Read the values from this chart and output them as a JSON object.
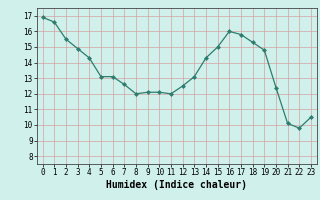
{
  "title": "",
  "xlabel": "Humidex (Indice chaleur)",
  "ylabel": "",
  "x": [
    0,
    1,
    2,
    3,
    4,
    5,
    6,
    7,
    8,
    9,
    10,
    11,
    12,
    13,
    14,
    15,
    16,
    17,
    18,
    19,
    20,
    21,
    22,
    23
  ],
  "y": [
    16.9,
    16.6,
    15.5,
    14.9,
    14.3,
    13.1,
    13.1,
    12.6,
    12.0,
    12.1,
    12.1,
    12.0,
    12.5,
    13.1,
    14.3,
    15.0,
    16.0,
    15.8,
    15.3,
    14.8,
    12.4,
    10.1,
    9.8,
    10.5
  ],
  "line_color": "#2e7d6e",
  "marker": "D",
  "marker_size": 2.0,
  "bg_color": "#cff0eb",
  "grid_color": "#d4a0a0",
  "ylim": [
    7.5,
    17.5
  ],
  "xlim": [
    -0.5,
    23.5
  ],
  "yticks": [
    8,
    9,
    10,
    11,
    12,
    13,
    14,
    15,
    16,
    17
  ],
  "xticks": [
    0,
    1,
    2,
    3,
    4,
    5,
    6,
    7,
    8,
    9,
    10,
    11,
    12,
    13,
    14,
    15,
    16,
    17,
    18,
    19,
    20,
    21,
    22,
    23
  ],
  "label_fontsize": 7,
  "tick_fontsize": 5.5
}
